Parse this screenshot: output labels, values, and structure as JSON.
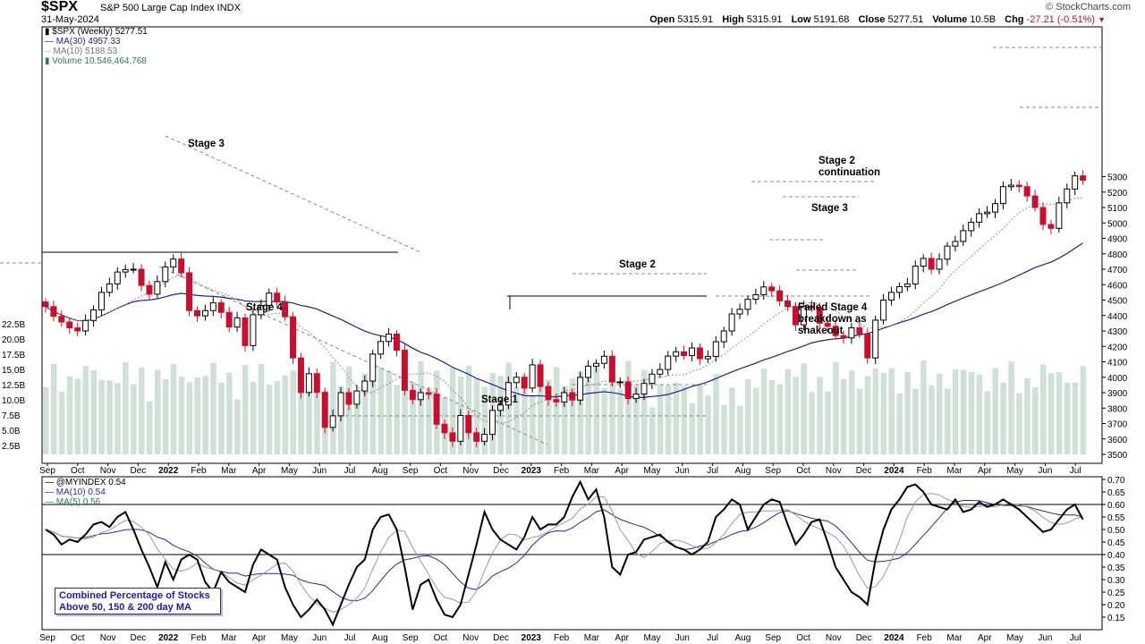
{
  "header": {
    "symbol": "$SPX",
    "name": "S&P 500 Large Cap Index  INDX",
    "date": "31-May-2024",
    "copyright": "© StockCharts.com",
    "open_label": "Open",
    "open": "5315.91",
    "high_label": "High",
    "high": "5315.91",
    "low_label": "Low",
    "low": "5191.68",
    "close_label": "Close",
    "close": "5277.51",
    "volume_label": "Volume",
    "volume": "10.5B",
    "chg_label": "Chg",
    "chg": "-27.21 (-0.51%)"
  },
  "legend": {
    "spx": "$SPX (Weekly) 5277.51",
    "ma30": "MA(30) 4957.33",
    "ma10": "MA(10) 5188.53",
    "volume": "Volume 10,546,464,768",
    "myindex": "@MYINDEX 0.54",
    "ind_ma10": "MA(10) 0.54",
    "ind_ma5": "MA(5) 0.56"
  },
  "indicator_box": {
    "line1": "Combined Percentage of Stocks",
    "line2": "Above 50, 150 & 200 day MA"
  },
  "annotations": {
    "stage3_left": "Stage 3",
    "stage4_left": "Stage 4",
    "stage1": "Stage 1",
    "stage2": "Stage 2",
    "stage2_cont_1": "Stage 2",
    "stage2_cont_2": "continuation",
    "stage3_right": "Stage 3",
    "failed_1": "Failed Stage 4",
    "failed_2": "breakdown as",
    "failed_3": "shakeout"
  },
  "colors": {
    "up": "#ffffff",
    "down": "#c8102e",
    "ma30": "#1f1f8f",
    "ma10": "#909090",
    "volume": "#cfe0d6",
    "indicator": "#000000",
    "ind_ma10": "#2a2aa0",
    "ind_ma5": "#9a9a9a"
  },
  "chart_data": [
    {
      "type": "candlestick",
      "title": "$SPX (Weekly)",
      "y_axis_ticks": [
        3500,
        3600,
        3700,
        3800,
        3900,
        4000,
        4100,
        4200,
        4300,
        4400,
        4500,
        4600,
        4700,
        4800,
        4900,
        5000,
        5100,
        5200,
        5300
      ],
      "volume_axis_ticks": [
        "2.5B",
        "5.0B",
        "7.5B",
        "10.0B",
        "12.5B",
        "15.0B",
        "17.5B",
        "20.0B",
        "22.5B"
      ],
      "x_axis_labels": [
        "Sep",
        "Oct",
        "Nov",
        "Dec",
        "2022",
        "Feb",
        "Mar",
        "Apr",
        "May",
        "Jun",
        "Jul",
        "Aug",
        "Sep",
        "Oct",
        "Nov",
        "Dec",
        "2023",
        "Feb",
        "Mar",
        "Apr",
        "May",
        "Jun",
        "Jul",
        "Aug",
        "Sep",
        "Oct",
        "Nov",
        "Dec",
        "2024",
        "Feb",
        "Mar",
        "Apr",
        "May",
        "Jun",
        "Jul"
      ],
      "closes": [
        4458,
        4395,
        4358,
        4320,
        4300,
        4368,
        4437,
        4550,
        4605,
        4682,
        4698,
        4700,
        4595,
        4538,
        4620,
        4715,
        4766,
        4677,
        4432,
        4398,
        4432,
        4482,
        4420,
        4325,
        4385,
        4205,
        4405,
        4465,
        4545,
        4488,
        4392,
        4125,
        3901,
        4023,
        3902,
        3675,
        3750,
        3900,
        3825,
        3911,
        3975,
        4150,
        4232,
        4280,
        4175,
        3915,
        3855,
        3900,
        3890,
        3695,
        3640,
        3585,
        3752,
        3640,
        3585,
        3630,
        3785,
        3820,
        3965,
        4000,
        3930,
        4080,
        3940,
        3855,
        3840,
        3900,
        3852,
        3999,
        4072,
        4090,
        4136,
        3970,
        3970,
        3862,
        3891,
        3960,
        4020,
        4050,
        4137,
        4165,
        4140,
        4190,
        4120,
        4135,
        4230,
        4300,
        4410,
        4440,
        4505,
        4535,
        4585,
        4560,
        4495,
        4458,
        4340,
        4460,
        4450,
        4350,
        4330,
        4270,
        4255,
        4320,
        4280,
        4125,
        4370,
        4500,
        4550,
        4587,
        4604,
        4720,
        4770,
        4700,
        4765,
        4850,
        4880,
        4950,
        5005,
        5060,
        5070,
        5125,
        5235,
        5245,
        5235,
        5175,
        5100,
        4990,
        4965,
        5130,
        5220,
        5305,
        5277
      ],
      "ma30_end": 4957.33,
      "ma10_end": 5188.53,
      "volume_last": "10,546,464,768",
      "annotations": [
        "Stage 3",
        "Stage 4",
        "Stage 1",
        "Stage 2",
        "Stage 2 continuation",
        "Stage 3",
        "Failed Stage 4 breakdown as shakeout"
      ]
    },
    {
      "type": "line",
      "title": "Combined Percentage of Stocks Above 50, 150 & 200 day MA",
      "y_axis_ticks": [
        0.15,
        0.2,
        0.25,
        0.3,
        0.35,
        0.4,
        0.45,
        0.5,
        0.55,
        0.6,
        0.65,
        0.7
      ],
      "horizontal_lines": [
        0.6,
        0.4
      ],
      "series": [
        {
          "name": "@MYINDEX",
          "last": 0.54,
          "values": [
            0.5,
            0.48,
            0.44,
            0.46,
            0.45,
            0.48,
            0.52,
            0.53,
            0.51,
            0.55,
            0.57,
            0.5,
            0.42,
            0.35,
            0.27,
            0.37,
            0.3,
            0.38,
            0.4,
            0.38,
            0.29,
            0.25,
            0.33,
            0.29,
            0.27,
            0.25,
            0.36,
            0.42,
            0.4,
            0.38,
            0.27,
            0.2,
            0.15,
            0.18,
            0.22,
            0.18,
            0.12,
            0.2,
            0.28,
            0.35,
            0.38,
            0.5,
            0.55,
            0.56,
            0.5,
            0.35,
            0.18,
            0.28,
            0.3,
            0.22,
            0.16,
            0.15,
            0.2,
            0.32,
            0.44,
            0.57,
            0.5,
            0.46,
            0.44,
            0.42,
            0.47,
            0.55,
            0.5,
            0.52,
            0.52,
            0.55,
            0.63,
            0.69,
            0.62,
            0.66,
            0.55,
            0.35,
            0.32,
            0.4,
            0.41,
            0.46,
            0.47,
            0.48,
            0.45,
            0.43,
            0.42,
            0.4,
            0.42,
            0.45,
            0.55,
            0.58,
            0.62,
            0.6,
            0.5,
            0.55,
            0.6,
            0.62,
            0.61,
            0.52,
            0.44,
            0.48,
            0.53,
            0.54,
            0.45,
            0.35,
            0.3,
            0.25,
            0.23,
            0.2,
            0.38,
            0.5,
            0.58,
            0.62,
            0.67,
            0.68,
            0.65,
            0.6,
            0.59,
            0.58,
            0.62,
            0.57,
            0.58,
            0.61,
            0.59,
            0.6,
            0.62,
            0.6,
            0.58,
            0.55,
            0.52,
            0.49,
            0.5,
            0.54,
            0.58,
            0.6,
            0.54
          ]
        },
        {
          "name": "MA(10)",
          "last": 0.54
        },
        {
          "name": "MA(5)",
          "last": 0.56
        }
      ]
    }
  ]
}
